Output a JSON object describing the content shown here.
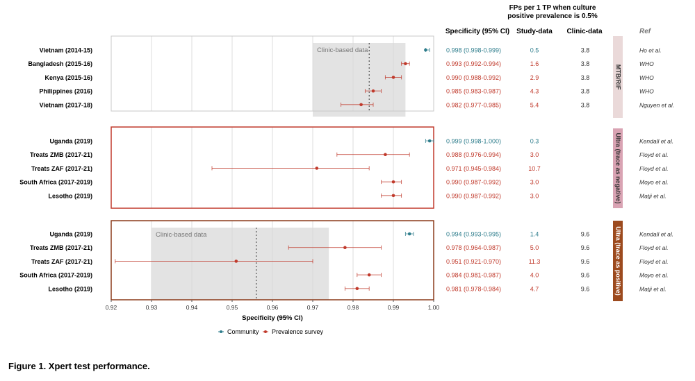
{
  "caption": "Figure 1. Xpert test performance.",
  "headers": {
    "fps_line1": "FPs per 1 TP when culture",
    "fps_line2": "positive prevalence is 0.5%",
    "specificity": "Specificity (95% CI)",
    "study": "Study-data",
    "clinic": "Clinic-data",
    "ref": "Ref"
  },
  "colors": {
    "community": "#2e7d8c",
    "survey": "#c0392b",
    "frame1": "#c8c8c8",
    "frame2": "#c0392b",
    "frame3": "#8b3a1a",
    "tab1": "#ead9d9",
    "tab2": "#d9a3b3",
    "tab3": "#9c4a1e"
  },
  "chart_data": {
    "type": "forest",
    "xlabel": "Specificity (95% CI)",
    "xlim": [
      0.92,
      1.0
    ],
    "xticks": [
      "0.92",
      "0.93",
      "0.94",
      "0.95",
      "0.96",
      "0.97",
      "0.98",
      "0.99",
      "1.00"
    ],
    "legend": [
      "Community",
      "Prevalence survey"
    ],
    "legend_position": "bottom",
    "panels": [
      {
        "label": "MTB/RIF",
        "clinic_band": {
          "label": "Clinic-based data",
          "low": 0.97,
          "high": 0.993,
          "point": 0.984
        },
        "rows": [
          {
            "name": "Vietnam (2014-15)",
            "type": "community",
            "est": 0.998,
            "lo": 0.998,
            "hi": 0.999,
            "ci_text": "0.998 (0.998-0.999)",
            "study": "0.5",
            "clinic": "3.8",
            "ref": "Ho et al."
          },
          {
            "name": "Bangladesh (2015-16)",
            "type": "survey",
            "est": 0.993,
            "lo": 0.992,
            "hi": 0.994,
            "ci_text": "0.993 (0.992-0.994)",
            "study": "1.6",
            "clinic": "3.8",
            "ref": "WHO"
          },
          {
            "name": "Kenya (2015-16)",
            "type": "survey",
            "est": 0.99,
            "lo": 0.988,
            "hi": 0.992,
            "ci_text": "0.990 (0.988-0.992)",
            "study": "2.9",
            "clinic": "3.8",
            "ref": "WHO"
          },
          {
            "name": "Philippines (2016)",
            "type": "survey",
            "est": 0.985,
            "lo": 0.983,
            "hi": 0.987,
            "ci_text": "0.985 (0.983-0.987)",
            "study": "4.3",
            "clinic": "3.8",
            "ref": "WHO"
          },
          {
            "name": "Vietnam (2017-18)",
            "type": "survey",
            "est": 0.982,
            "lo": 0.977,
            "hi": 0.985,
            "ci_text": "0.982 (0.977-0.985)",
            "study": "5.4",
            "clinic": "3.8",
            "ref": "Nguyen et al."
          }
        ]
      },
      {
        "label": "Ultra (trace as negative)",
        "clinic_band": null,
        "rows": [
          {
            "name": "Uganda (2019)",
            "type": "community",
            "est": 0.999,
            "lo": 0.998,
            "hi": 1.0,
            "ci_text": "0.999 (0.998-1.000)",
            "study": "0.3",
            "clinic": "",
            "ref": "Kendall et al."
          },
          {
            "name": "Treats ZMB (2017-21)",
            "type": "survey",
            "est": 0.988,
            "lo": 0.976,
            "hi": 0.994,
            "ci_text": "0.988 (0.976-0.994)",
            "study": "3.0",
            "clinic": "",
            "ref": "Floyd et al."
          },
          {
            "name": "Treats ZAF (2017-21)",
            "type": "survey",
            "est": 0.971,
            "lo": 0.945,
            "hi": 0.984,
            "ci_text": "0.971 (0.945-0.984)",
            "study": "10.7",
            "clinic": "",
            "ref": "Floyd et al."
          },
          {
            "name": "South Africa (2017-2019)",
            "type": "survey",
            "est": 0.99,
            "lo": 0.987,
            "hi": 0.992,
            "ci_text": "0.990 (0.987-0.992)",
            "study": "3.0",
            "clinic": "",
            "ref": "Moyo et al."
          },
          {
            "name": "Lesotho (2019)",
            "type": "survey",
            "est": 0.99,
            "lo": 0.987,
            "hi": 0.992,
            "ci_text": "0.990 (0.987-0.992)",
            "study": "3.0",
            "clinic": "",
            "ref": "Matji et al."
          }
        ]
      },
      {
        "label": "Ultra (trace as positive)",
        "clinic_band": {
          "label": "Clinic-based data",
          "low": 0.93,
          "high": 0.974,
          "point": 0.956
        },
        "rows": [
          {
            "name": "Uganda (2019)",
            "type": "community",
            "est": 0.994,
            "lo": 0.993,
            "hi": 0.995,
            "ci_text": "0.994 (0.993-0.995)",
            "study": "1.4",
            "clinic": "9.6",
            "ref": "Kendall et al."
          },
          {
            "name": "Treats ZMB (2017-21)",
            "type": "survey",
            "est": 0.978,
            "lo": 0.964,
            "hi": 0.987,
            "ci_text": "0.978 (0.964-0.987)",
            "study": "5.0",
            "clinic": "9.6",
            "ref": "Floyd et al."
          },
          {
            "name": "Treats ZAF (2017-21)",
            "type": "survey",
            "est": 0.951,
            "lo": 0.921,
            "hi": 0.97,
            "ci_text": "0.951 (0.921-0.970)",
            "study": "11.3",
            "clinic": "9.6",
            "ref": "Floyd et al."
          },
          {
            "name": "South Africa (2017-2019)",
            "type": "survey",
            "est": 0.984,
            "lo": 0.981,
            "hi": 0.987,
            "ci_text": "0.984 (0.981-0.987)",
            "study": "4.0",
            "clinic": "9.6",
            "ref": "Moyo et al."
          },
          {
            "name": "Lesotho (2019)",
            "type": "survey",
            "est": 0.981,
            "lo": 0.978,
            "hi": 0.984,
            "ci_text": "0.981 (0.978-0.984)",
            "study": "4.7",
            "clinic": "9.6",
            "ref": "Matji et al."
          }
        ]
      }
    ]
  }
}
